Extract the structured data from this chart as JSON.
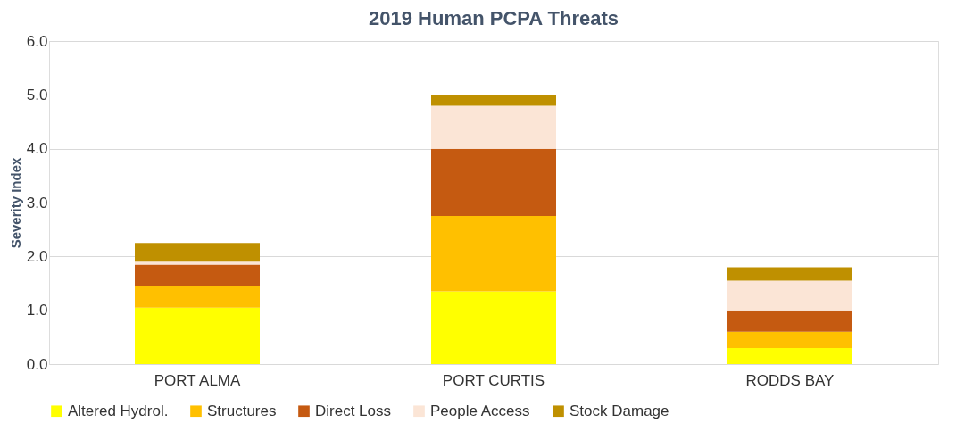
{
  "chart_data": {
    "type": "bar",
    "stacked": true,
    "title": "2019 Human PCPA Threats",
    "ylabel": "Severity Index",
    "categories": [
      "PORT ALMA",
      "PORT CURTIS",
      "RODDS BAY"
    ],
    "series": [
      {
        "name": "Altered Hydrol.",
        "color": "#ffff00",
        "values": [
          1.05,
          1.35,
          0.3
        ]
      },
      {
        "name": "Structures",
        "color": "#ffc000",
        "values": [
          0.4,
          1.4,
          0.3
        ]
      },
      {
        "name": "Direct Loss",
        "color": "#c55a11",
        "values": [
          0.4,
          1.25,
          0.4
        ]
      },
      {
        "name": "People Access",
        "color": "#fbe5d6",
        "values": [
          0.05,
          0.8,
          0.55
        ]
      },
      {
        "name": "Stock Damage",
        "color": "#bf9000",
        "values": [
          0.35,
          0.2,
          0.25
        ]
      }
    ],
    "ylim": [
      0,
      6
    ],
    "yticks": [
      {
        "value": 0,
        "label": "0.0"
      },
      {
        "value": 1,
        "label": "1.0"
      },
      {
        "value": 2,
        "label": "2.0"
      },
      {
        "value": 3,
        "label": "3.0"
      },
      {
        "value": 4,
        "label": "4.0"
      },
      {
        "value": 5,
        "label": "5.0"
      },
      {
        "value": 6,
        "label": "6.0"
      }
    ],
    "grid": "y",
    "legend": "bottom"
  }
}
